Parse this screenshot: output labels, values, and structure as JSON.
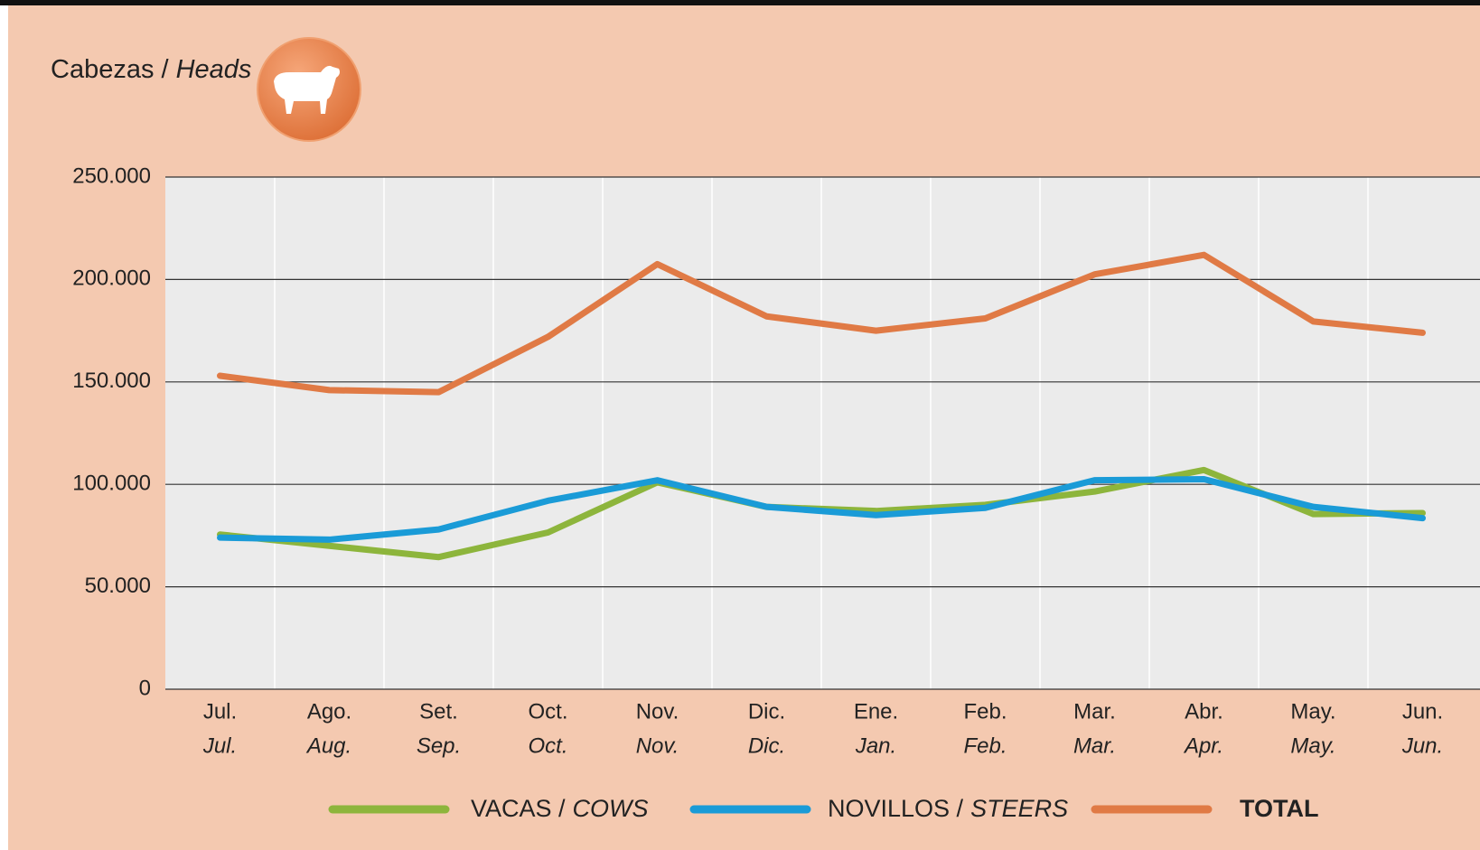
{
  "chart_data": {
    "type": "line",
    "title": "Cabezas /",
    "title_en": "Heads",
    "categories": [
      "Jul.",
      "Ago.",
      "Set.",
      "Oct.",
      "Nov.",
      "Dic.",
      "Ene.",
      "Feb.",
      "Mar.",
      "Abr.",
      "May.",
      "Jun."
    ],
    "categories_en": [
      "Jul.",
      "Aug.",
      "Sep.",
      "Oct.",
      "Nov.",
      "Dic.",
      "Jan.",
      "Feb.",
      "Mar.",
      "Apr.",
      "May.",
      "Jun."
    ],
    "series": [
      {
        "name": "VACAS /",
        "name_en": "COWS",
        "color": "#8db53c",
        "values": [
          75500,
          70000,
          64500,
          76500,
          101000,
          89000,
          87000,
          90000,
          96500,
          107000,
          85500,
          86000
        ]
      },
      {
        "name": "NOVILLOS /",
        "name_en": "STEERS",
        "color": "#1a9bd7",
        "values": [
          74000,
          73000,
          78000,
          92000,
          102000,
          89000,
          85000,
          88500,
          102000,
          102500,
          89000,
          83500
        ]
      },
      {
        "name": "TOTAL",
        "color": "#e07a45",
        "values": [
          153000,
          146000,
          145000,
          172000,
          207500,
          182000,
          175000,
          181000,
          202500,
          212000,
          179500,
          174000
        ]
      }
    ],
    "ylim": [
      0,
      250000
    ],
    "yticks": [
      0,
      {
        "value": 50000,
        "label": "50.000"
      },
      {
        "value": 100000,
        "label": "100.000"
      },
      {
        "value": 150000,
        "label": "150.000"
      },
      {
        "value": 200000,
        "label": "200.000"
      },
      {
        "value": 250000,
        "label": "250.000"
      }
    ],
    "grid": true
  }
}
